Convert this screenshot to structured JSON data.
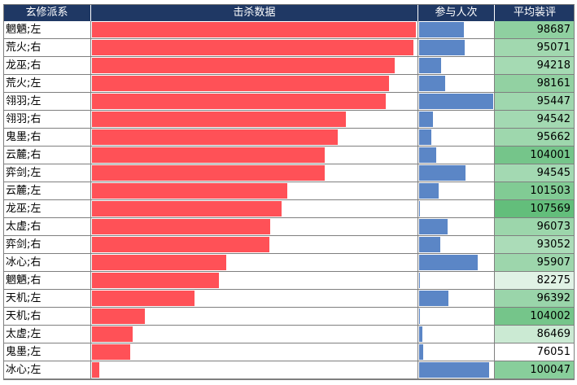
{
  "chart_data": {
    "type": "table",
    "columns": [
      "玄修派系",
      "击杀数据",
      "参与人次",
      "平均装评"
    ],
    "rows": [
      {
        "name": "魍魉;左",
        "kills": 100,
        "participation": 60,
        "score": "98687"
      },
      {
        "name": "荒火;右",
        "kills": 99.2,
        "participation": 61,
        "score": "95071"
      },
      {
        "name": "龙巫;右",
        "kills": 93.4,
        "participation": 30,
        "score": "94218"
      },
      {
        "name": "荒火;左",
        "kills": 91.8,
        "participation": 35,
        "score": "98161"
      },
      {
        "name": "翎羽;左",
        "kills": 90.6,
        "participation": 100,
        "score": "95447"
      },
      {
        "name": "翎羽;右",
        "kills": 78.3,
        "participation": 19,
        "score": "94542"
      },
      {
        "name": "鬼墨;右",
        "kills": 75.9,
        "participation": 17,
        "score": "95662"
      },
      {
        "name": "云麓;右",
        "kills": 71.9,
        "participation": 23,
        "score": "104001"
      },
      {
        "name": "弈剑;左",
        "kills": 71.9,
        "participation": 63,
        "score": "94545"
      },
      {
        "name": "云麓;左",
        "kills": 60.2,
        "participation": 26,
        "score": "101503"
      },
      {
        "name": "龙巫;左",
        "kills": 58.6,
        "participation": 1,
        "score": "107569"
      },
      {
        "name": "太虚;右",
        "kills": 55.1,
        "participation": 39,
        "score": "96073"
      },
      {
        "name": "弈剑;右",
        "kills": 54.7,
        "participation": 29,
        "score": "93052"
      },
      {
        "name": "冰心;右",
        "kills": 41.4,
        "participation": 79,
        "score": "95907"
      },
      {
        "name": "魍魉;右",
        "kills": 39.1,
        "participation": 1,
        "score": "82275"
      },
      {
        "name": "天机;左",
        "kills": 31.6,
        "participation": 40,
        "score": "96392"
      },
      {
        "name": "天机;右",
        "kills": 16.4,
        "participation": 1,
        "score": "104002"
      },
      {
        "name": "太虚;左",
        "kills": 12.5,
        "participation": 4,
        "score": "86469"
      },
      {
        "name": "鬼墨;左",
        "kills": 11.7,
        "participation": 6,
        "score": "76051"
      },
      {
        "name": "冰心;左",
        "kills": 2.3,
        "participation": 95,
        "score": "100047"
      }
    ],
    "kills_max": 100,
    "participation_max": 100,
    "score_range": [
      76051,
      107569
    ],
    "colors": {
      "header": "#1f3864",
      "kills_bar": "#ff5157",
      "participation_bar": "#5b86c6",
      "score_low": "#ffffff",
      "score_high": "#63be7b"
    }
  }
}
